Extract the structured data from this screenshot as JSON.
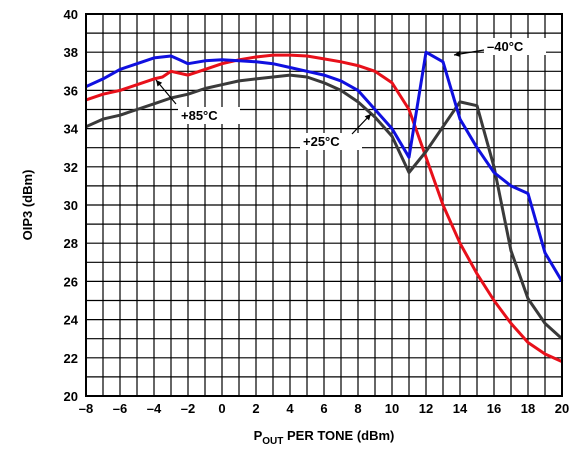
{
  "chart_data": {
    "type": "line",
    "xlabel": "P",
    "xlabel_sub": "OUT",
    "xlabel_rest": " PER TONE (dBm)",
    "ylabel": "OIP3 (dBm)",
    "xlim": [
      -8,
      20
    ],
    "ylim": [
      20,
      40
    ],
    "xticks": [
      -8,
      -6,
      -4,
      -2,
      0,
      2,
      4,
      6,
      8,
      10,
      12,
      14,
      16,
      18,
      20
    ],
    "yticks": [
      20,
      22,
      24,
      26,
      28,
      30,
      32,
      34,
      36,
      38,
      40
    ],
    "grid": true,
    "series": [
      {
        "name": "+85°C",
        "color": "#e8101a",
        "x": [
          -8,
          -7,
          -6,
          -5,
          -4,
          -3.5,
          -3,
          -2,
          -1,
          0,
          1,
          2,
          3,
          4,
          5,
          6,
          7,
          8,
          9,
          10,
          11,
          12,
          13,
          14,
          15,
          16,
          17,
          18,
          19,
          20
        ],
        "y": [
          35.5,
          35.8,
          36.0,
          36.3,
          36.6,
          36.7,
          37.0,
          36.8,
          37.1,
          37.4,
          37.6,
          37.75,
          37.85,
          37.85,
          37.8,
          37.65,
          37.5,
          37.3,
          37.0,
          36.4,
          35.0,
          32.5,
          30.0,
          28.0,
          26.4,
          25.0,
          23.8,
          22.8,
          22.2,
          21.8
        ]
      },
      {
        "name": "+25°C",
        "color": "#3a3a3a",
        "x": [
          -8,
          -7,
          -6,
          -5,
          -4,
          -3,
          -2,
          -1,
          0,
          1,
          2,
          3,
          4,
          5,
          6,
          7,
          8,
          9,
          10,
          11,
          12,
          13,
          14,
          15,
          16,
          17,
          18,
          19,
          20
        ],
        "y": [
          34.1,
          34.5,
          34.7,
          35.0,
          35.3,
          35.6,
          35.8,
          36.1,
          36.3,
          36.5,
          36.6,
          36.7,
          36.8,
          36.7,
          36.4,
          36.0,
          35.4,
          34.6,
          33.6,
          31.7,
          32.8,
          34.1,
          35.4,
          35.2,
          32.0,
          27.6,
          25.1,
          23.8,
          23.0
        ]
      },
      {
        "name": "–40°C",
        "color": "#1010e0",
        "x": [
          -8,
          -7,
          -6,
          -5,
          -4,
          -3,
          -2.5,
          -2,
          -1,
          0,
          1,
          2,
          3,
          4,
          5,
          6,
          7,
          8,
          9,
          10,
          11,
          12,
          13,
          14,
          15,
          16,
          17,
          18,
          19,
          20
        ],
        "y": [
          36.2,
          36.6,
          37.1,
          37.4,
          37.7,
          37.8,
          37.6,
          37.4,
          37.55,
          37.6,
          37.55,
          37.5,
          37.4,
          37.2,
          37.0,
          36.8,
          36.5,
          36.0,
          35.0,
          34.0,
          32.5,
          38.0,
          37.5,
          34.5,
          33.0,
          31.7,
          31.0,
          30.6,
          27.5,
          26.0
        ]
      }
    ],
    "annotations": [
      {
        "text": "+85°C",
        "series": 0
      },
      {
        "text": "+25°C",
        "series": 1
      },
      {
        "text": "–40°C",
        "series": 2
      }
    ]
  }
}
